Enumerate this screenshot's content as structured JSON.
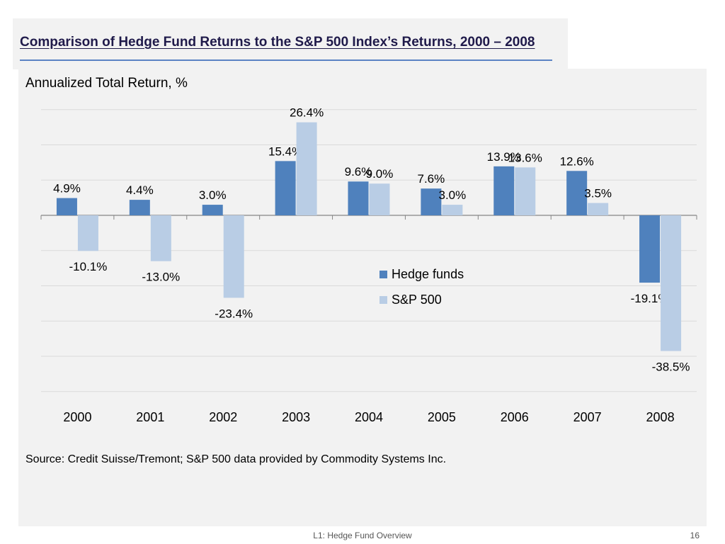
{
  "title": "Comparison of Hedge Fund Returns to the S&P 500 Index’s Returns, 2000 – 2008",
  "source": "Source: Credit Suisse/Tremont; S&P 500 data provided by Commodity Systems Inc.",
  "footer": {
    "text": "L1: Hedge Fund Overview",
    "page": "16"
  },
  "chart_data": {
    "type": "bar",
    "title": "",
    "ylabel": "Annualized Total Return, %",
    "categories": [
      "2000",
      "2001",
      "2002",
      "2003",
      "2004",
      "2005",
      "2006",
      "2007",
      "2008"
    ],
    "series": [
      {
        "name": "Hedge funds",
        "color": "#4f81bd",
        "values": [
          4.9,
          4.4,
          3.0,
          15.4,
          9.6,
          7.6,
          13.9,
          12.6,
          -19.1
        ],
        "labels": [
          "4.9%",
          "4.4%",
          "3.0%",
          "15.4%",
          "9.6%",
          "7.6%",
          "13.9%",
          "12.6%",
          "-19.1%"
        ]
      },
      {
        "name": "S&P 500",
        "color": "#b9cde5",
        "values": [
          -10.1,
          -13.0,
          -23.4,
          26.4,
          9.0,
          3.0,
          13.6,
          3.5,
          -38.5
        ],
        "labels": [
          "-10.1%",
          "-13.0%",
          "-23.4%",
          "26.4%",
          "9.0%",
          "3.0%",
          "13.6%",
          "3.5%",
          "-38.5%"
        ]
      }
    ],
    "ylim": [
      -50,
      30
    ],
    "gridlines": true,
    "legend_position": "center"
  }
}
